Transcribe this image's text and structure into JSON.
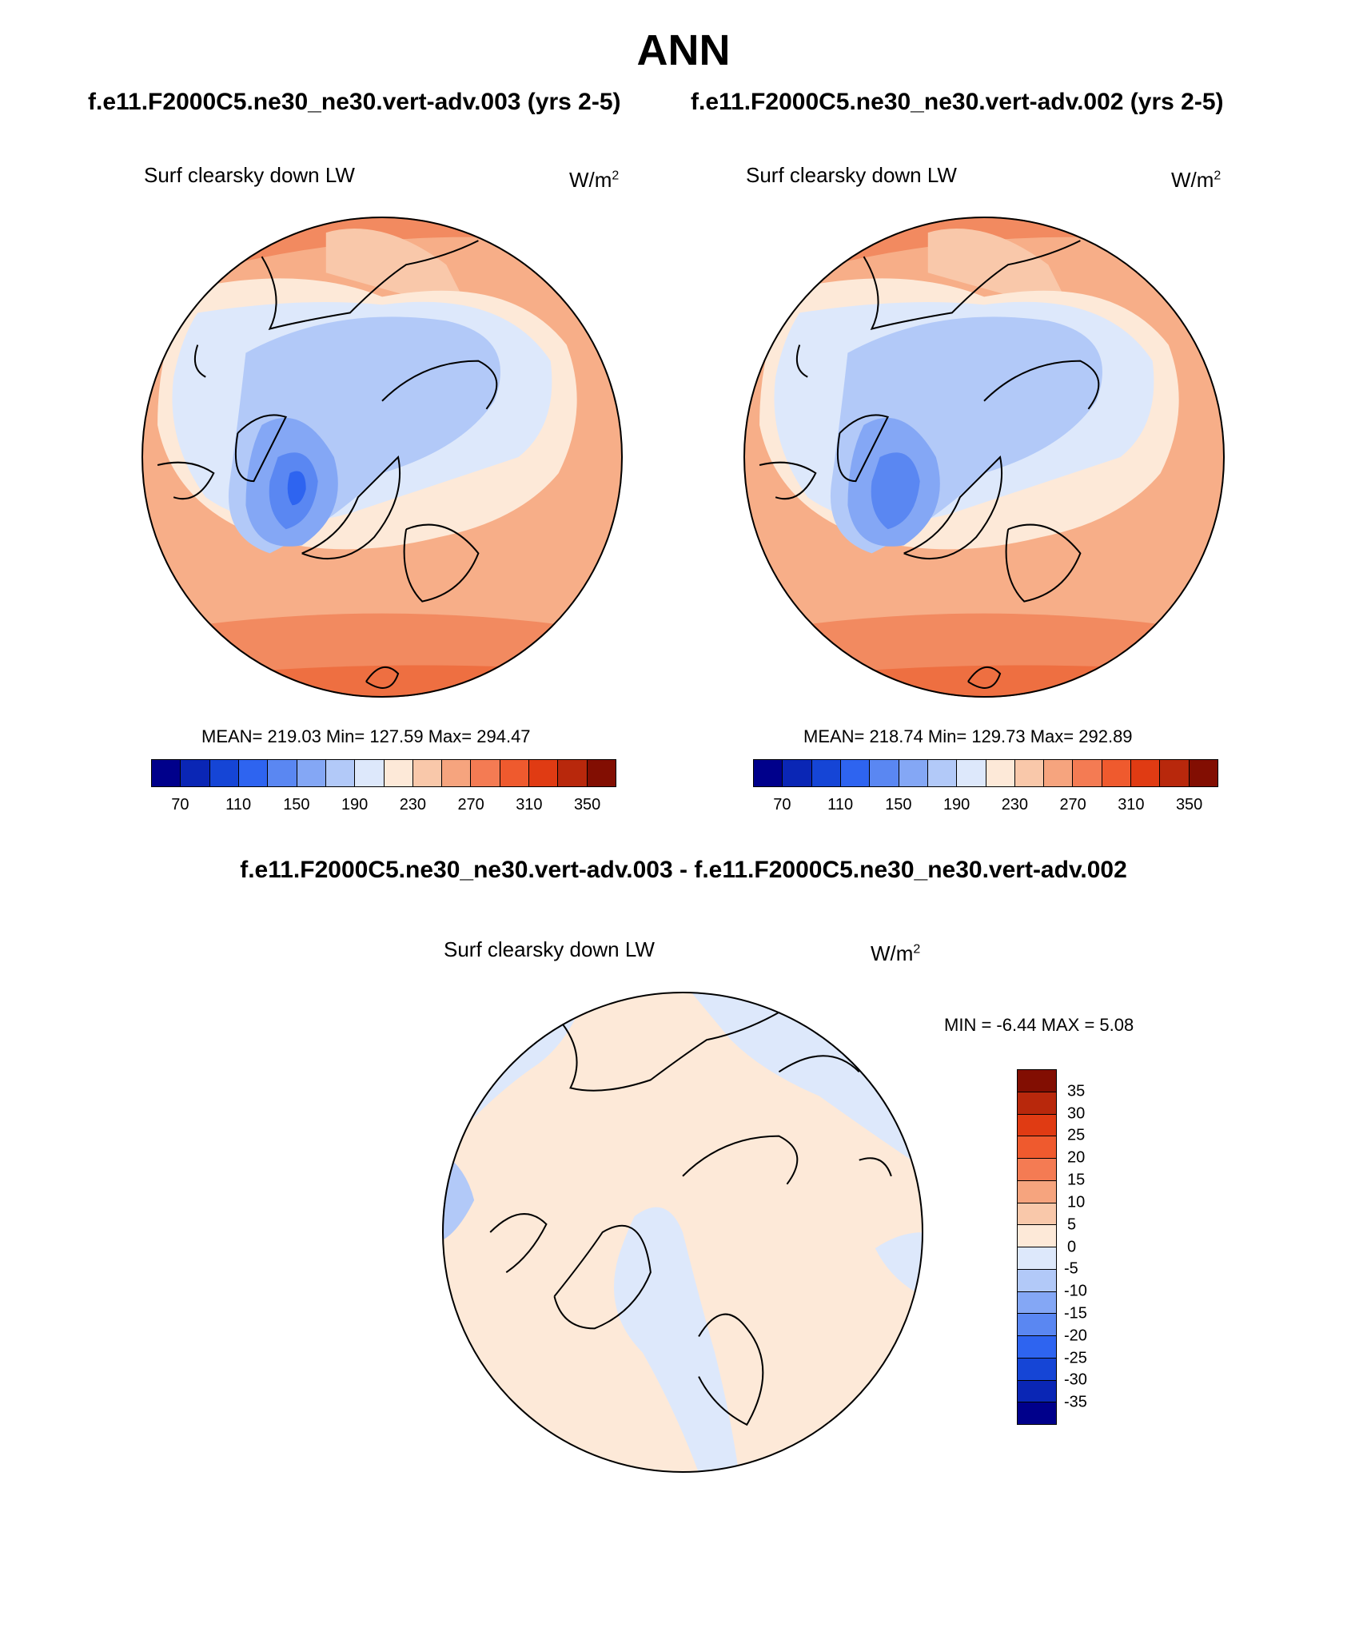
{
  "title": "ANN",
  "case_left": "f.e11.F2000C5.ne30_ne30.vert-adv.003 (yrs 2-5)",
  "case_right": "f.e11.F2000C5.ne30_ne30.vert-adv.002 (yrs 2-5)",
  "diff_title": "f.e11.F2000C5.ne30_ne30.vert-adv.003 - f.e11.F2000C5.ne30_ne30.vert-adv.002",
  "panels": {
    "left": {
      "variable": "Surf clearsky down LW",
      "units": "W/m",
      "units_sup": "2",
      "stats": "MEAN= 219.03  Min= 127.59  Max= 294.47"
    },
    "right": {
      "variable": "Surf clearsky down LW",
      "units": "W/m",
      "units_sup": "2",
      "stats": "MEAN= 218.74  Min= 129.73  Max= 292.89"
    },
    "diff": {
      "variable": "Surf clearsky down LW",
      "units": "W/m",
      "units_sup": "2",
      "stats": "MIN =  -6.44 MAX =   5.08"
    }
  },
  "colorbar_main": {
    "ticks": [
      "70",
      "110",
      "150",
      "190",
      "230",
      "270",
      "310",
      "350"
    ],
    "colors": [
      "#00008b",
      "#0a26b5",
      "#1545d6",
      "#2e64f0",
      "#5a87f2",
      "#84a7f5",
      "#b2c9f8",
      "#dde8fb",
      "#fde9d8",
      "#f9c8aa",
      "#f6a47e",
      "#f47b53",
      "#ef5a2e",
      "#e03b13",
      "#b8280c",
      "#820e02"
    ]
  },
  "colorbar_diff": {
    "ticks": [
      "35",
      "30",
      "25",
      "20",
      "15",
      "10",
      "5",
      "0",
      "-5",
      "-10",
      "-15",
      "-20",
      "-25",
      "-30",
      "-35"
    ],
    "colors": [
      "#820e02",
      "#b8280c",
      "#e03b13",
      "#ef5a2e",
      "#f47b53",
      "#f6a47e",
      "#f9c8aa",
      "#fde9d8",
      "#dde8fb",
      "#b2c9f8",
      "#84a7f5",
      "#5a87f2",
      "#2e64f0",
      "#1545d6",
      "#0a26b5",
      "#00008b"
    ]
  }
}
